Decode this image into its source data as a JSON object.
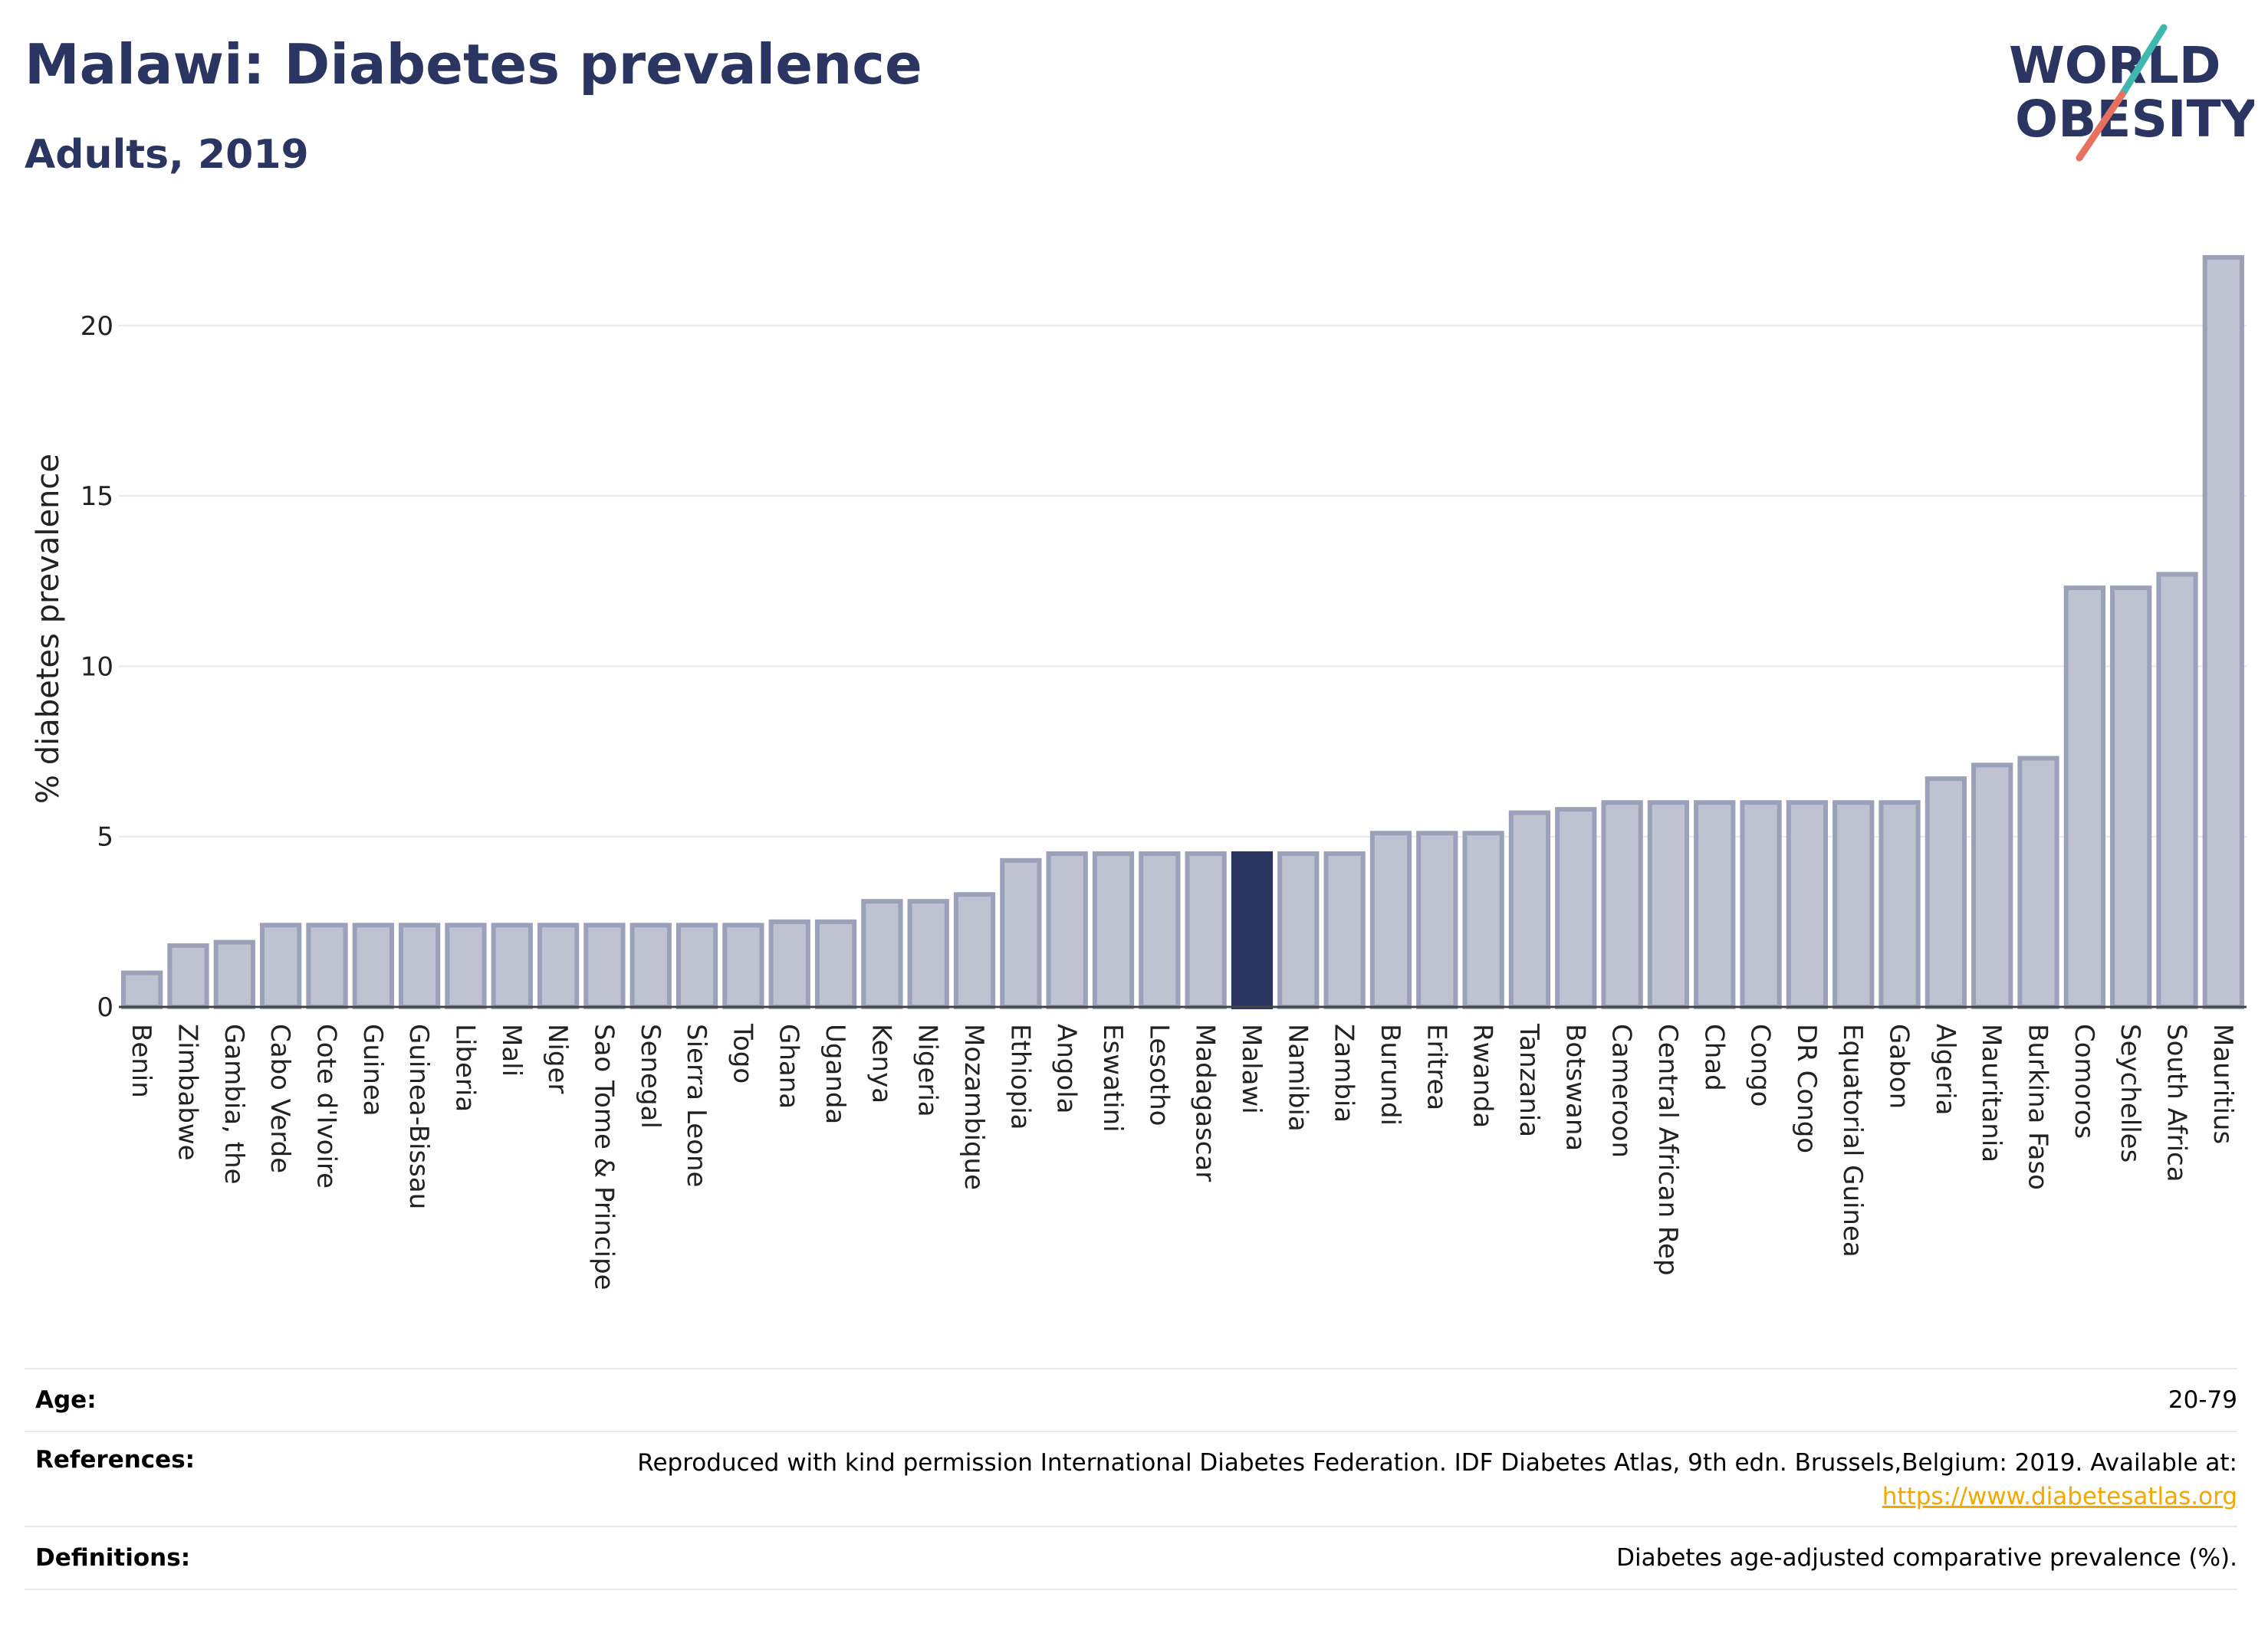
{
  "header": {
    "title": "Malawi: Diabetes prevalence",
    "subtitle": "Adults, 2019"
  },
  "logo": {
    "line1": "WORLD",
    "line2": "OBESITY"
  },
  "colors": {
    "title": "#2b3561",
    "bar": "#bfc3d1",
    "bar_stroke": "#9ba1b8",
    "highlight": "#2b3561",
    "grid": "#e6e9f1",
    "link": "#f2a800"
  },
  "chart_data": {
    "type": "bar",
    "title": "Malawi: Diabetes prevalence",
    "subtitle": "Adults, 2019",
    "xlabel": "",
    "ylabel": "% diabetes prevalence",
    "ylim": [
      0,
      22.2
    ],
    "yticks": [
      0,
      5,
      10,
      15,
      20
    ],
    "grid": true,
    "legend": "none",
    "highlight": "Malawi",
    "categories": [
      "Benin",
      "Zimbabwe",
      "Gambia, the",
      "Cabo Verde",
      "Cote d'Ivoire",
      "Guinea",
      "Guinea-Bissau",
      "Liberia",
      "Mali",
      "Niger",
      "Sao Tome & Principe",
      "Senegal",
      "Sierra Leone",
      "Togo",
      "Ghana",
      "Uganda",
      "Kenya",
      "Nigeria",
      "Mozambique",
      "Ethiopia",
      "Angola",
      "Eswatini",
      "Lesotho",
      "Madagascar",
      "Malawi",
      "Namibia",
      "Zambia",
      "Burundi",
      "Eritrea",
      "Rwanda",
      "Tanzania",
      "Botswana",
      "Cameroon",
      "Central African Rep",
      "Chad",
      "Congo",
      "DR Congo",
      "Equatorial Guinea",
      "Gabon",
      "Algeria",
      "Mauritania",
      "Burkina Faso",
      "Comoros",
      "Seychelles",
      "South Africa",
      "Mauritius"
    ],
    "values": [
      1.0,
      1.8,
      1.9,
      2.4,
      2.4,
      2.4,
      2.4,
      2.4,
      2.4,
      2.4,
      2.4,
      2.4,
      2.4,
      2.4,
      2.5,
      2.5,
      3.1,
      3.1,
      3.3,
      4.3,
      4.5,
      4.5,
      4.5,
      4.5,
      4.5,
      4.5,
      4.5,
      5.1,
      5.1,
      5.1,
      5.7,
      5.8,
      6.0,
      6.0,
      6.0,
      6.0,
      6.0,
      6.0,
      6.0,
      6.7,
      7.1,
      7.3,
      12.3,
      12.3,
      12.7,
      22.0
    ]
  },
  "info": [
    {
      "label": "Age:",
      "value": "20-79"
    },
    {
      "label": "References:",
      "value": "Reproduced with kind permission International Diabetes Federation. IDF Diabetes Atlas, 9th edn. Brussels,Belgium: 2019. Available at:",
      "link": "https://www.diabetesatlas.org"
    },
    {
      "label": "Definitions:",
      "value": "Diabetes age-adjusted comparative prevalence (%)."
    }
  ]
}
